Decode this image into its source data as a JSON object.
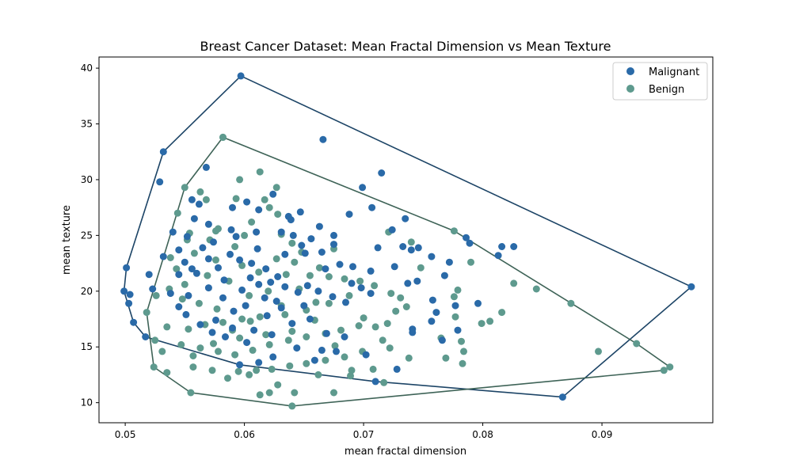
{
  "chart_data": {
    "type": "scatter",
    "title": "Breast Cancer Dataset: Mean Fractal Dimension vs Mean Texture",
    "xlabel": "mean fractal dimension",
    "ylabel": "mean texture",
    "xlim": [
      0.0478,
      0.0993
    ],
    "ylim": [
      8.2,
      41.0
    ],
    "xticks": [
      0.05,
      0.06,
      0.07,
      0.08,
      0.09
    ],
    "xtick_labels": [
      "0.05",
      "0.06",
      "0.07",
      "0.08",
      "0.09"
    ],
    "yticks": [
      10,
      15,
      20,
      25,
      30,
      35,
      40
    ],
    "ytick_labels": [
      "10",
      "15",
      "20",
      "25",
      "30",
      "35",
      "40"
    ],
    "grid": false,
    "legend_position": "top-right",
    "series": [
      {
        "name": "Malignant",
        "color": "#2a6aa8",
        "hull_color": "#1c4466",
        "points": [
          [
            0.0597,
            39.3
          ],
          [
            0.0532,
            32.5
          ],
          [
            0.0529,
            29.8
          ],
          [
            0.0666,
            33.6
          ],
          [
            0.0715,
            30.6
          ],
          [
            0.0568,
            31.1
          ],
          [
            0.0501,
            22.1
          ],
          [
            0.0499,
            20.0
          ],
          [
            0.0503,
            18.9
          ],
          [
            0.0507,
            17.2
          ],
          [
            0.0517,
            15.9
          ],
          [
            0.0504,
            19.7
          ],
          [
            0.0975,
            20.4
          ],
          [
            0.0867,
            10.5
          ],
          [
            0.071,
            11.9
          ],
          [
            0.0728,
            13.0
          ],
          [
            0.054,
            25.3
          ],
          [
            0.0552,
            24.9
          ],
          [
            0.0558,
            26.5
          ],
          [
            0.0562,
            27.8
          ],
          [
            0.0556,
            28.2
          ],
          [
            0.057,
            26.0
          ],
          [
            0.059,
            27.5
          ],
          [
            0.0612,
            27.3
          ],
          [
            0.0624,
            28.7
          ],
          [
            0.0602,
            28.0
          ],
          [
            0.0647,
            27.1
          ],
          [
            0.0699,
            29.3
          ],
          [
            0.0707,
            27.5
          ],
          [
            0.0688,
            26.9
          ],
          [
            0.0735,
            26.5
          ],
          [
            0.0724,
            25.5
          ],
          [
            0.0733,
            24.0
          ],
          [
            0.074,
            23.7
          ],
          [
            0.0746,
            23.9
          ],
          [
            0.0757,
            23.1
          ],
          [
            0.0772,
            22.6
          ],
          [
            0.0786,
            24.8
          ],
          [
            0.0789,
            24.3
          ],
          [
            0.0813,
            23.2
          ],
          [
            0.0816,
            24.0
          ],
          [
            0.0826,
            24.0
          ],
          [
            0.0768,
            21.4
          ],
          [
            0.0758,
            19.2
          ],
          [
            0.0761,
            18.1
          ],
          [
            0.0777,
            18.7
          ],
          [
            0.0779,
            16.5
          ],
          [
            0.0766,
            15.6
          ],
          [
            0.0796,
            18.9
          ],
          [
            0.0757,
            17.3
          ],
          [
            0.0741,
            16.6
          ],
          [
            0.0741,
            16.3
          ],
          [
            0.0737,
            20.7
          ],
          [
            0.0745,
            20.9
          ],
          [
            0.0726,
            22.2
          ],
          [
            0.0712,
            23.9
          ],
          [
            0.0675,
            25.0
          ],
          [
            0.0663,
            25.8
          ],
          [
            0.0665,
            23.5
          ],
          [
            0.0656,
            24.7
          ],
          [
            0.0641,
            25.0
          ],
          [
            0.0648,
            24.1
          ],
          [
            0.0631,
            25.3
          ],
          [
            0.061,
            25.3
          ],
          [
            0.0589,
            25.5
          ],
          [
            0.0593,
            24.9
          ],
          [
            0.0574,
            24.4
          ],
          [
            0.0565,
            23.9
          ],
          [
            0.0545,
            23.7
          ],
          [
            0.0532,
            23.1
          ],
          [
            0.055,
            22.6
          ],
          [
            0.0556,
            22.0
          ],
          [
            0.0545,
            21.5
          ],
          [
            0.052,
            21.5
          ],
          [
            0.0523,
            20.2
          ],
          [
            0.0538,
            19.8
          ],
          [
            0.0553,
            19.6
          ],
          [
            0.057,
            20.3
          ],
          [
            0.0582,
            19.4
          ],
          [
            0.0598,
            20.1
          ],
          [
            0.0612,
            20.6
          ],
          [
            0.0622,
            20.8
          ],
          [
            0.0628,
            21.3
          ],
          [
            0.0634,
            20.4
          ],
          [
            0.0645,
            19.9
          ],
          [
            0.0653,
            20.5
          ],
          [
            0.0662,
            20.0
          ],
          [
            0.0674,
            19.5
          ],
          [
            0.0685,
            19.0
          ],
          [
            0.069,
            20.7
          ],
          [
            0.0698,
            20.3
          ],
          [
            0.0706,
            19.8
          ],
          [
            0.0618,
            22.0
          ],
          [
            0.0606,
            22.5
          ],
          [
            0.0596,
            22.8
          ],
          [
            0.0588,
            23.3
          ],
          [
            0.0578,
            22.1
          ],
          [
            0.0634,
            23.3
          ],
          [
            0.0651,
            23.4
          ],
          [
            0.0668,
            22.0
          ],
          [
            0.068,
            22.4
          ],
          [
            0.0601,
            18.7
          ],
          [
            0.0591,
            18.2
          ],
          [
            0.0576,
            17.4
          ],
          [
            0.0563,
            17.0
          ],
          [
            0.0551,
            17.9
          ],
          [
            0.0545,
            18.6
          ],
          [
            0.0619,
            17.8
          ],
          [
            0.0631,
            18.5
          ],
          [
            0.064,
            17.1
          ],
          [
            0.0655,
            17.5
          ],
          [
            0.0669,
            16.2
          ],
          [
            0.0684,
            15.9
          ],
          [
            0.0702,
            14.3
          ],
          [
            0.0665,
            14.7
          ],
          [
            0.0644,
            14.9
          ],
          [
            0.0602,
            15.4
          ],
          [
            0.0584,
            15.9
          ],
          [
            0.059,
            16.7
          ],
          [
            0.0573,
            16.3
          ],
          [
            0.0608,
            16.5
          ],
          [
            0.0623,
            16.1
          ],
          [
            0.0596,
            13.4
          ],
          [
            0.0612,
            13.6
          ],
          [
            0.0624,
            14.1
          ],
          [
            0.0659,
            13.8
          ],
          [
            0.0677,
            14.6
          ],
          [
            0.0617,
            19.4
          ],
          [
            0.0627,
            19.1
          ],
          [
            0.065,
            18.7
          ],
          [
            0.0605,
            21.2
          ],
          [
            0.0583,
            21.0
          ],
          [
            0.057,
            22.9
          ],
          [
            0.056,
            21.6
          ],
          [
            0.0637,
            26.7
          ],
          [
            0.0639,
            26.4
          ],
          [
            0.0611,
            23.8
          ],
          [
            0.0675,
            24.2
          ],
          [
            0.0691,
            22.2
          ],
          [
            0.0706,
            21.8
          ]
        ]
      },
      {
        "name": "Benign",
        "color": "#5e9a8e",
        "hull_color": "#3e6357",
        "points": [
          [
            0.0582,
            33.8
          ],
          [
            0.0613,
            30.7
          ],
          [
            0.0596,
            30.0
          ],
          [
            0.055,
            29.3
          ],
          [
            0.0563,
            28.9
          ],
          [
            0.0568,
            28.2
          ],
          [
            0.0593,
            28.3
          ],
          [
            0.0617,
            28.2
          ],
          [
            0.0627,
            29.3
          ],
          [
            0.0621,
            27.5
          ],
          [
            0.0544,
            27.0
          ],
          [
            0.0552,
            24.6
          ],
          [
            0.0576,
            25.4
          ],
          [
            0.06,
            25.0
          ],
          [
            0.0631,
            25.1
          ],
          [
            0.0582,
            33.8
          ],
          [
            0.0578,
            25.6
          ],
          [
            0.064,
            24.3
          ],
          [
            0.0648,
            23.5
          ],
          [
            0.0675,
            23.8
          ],
          [
            0.0721,
            25.3
          ],
          [
            0.074,
            24.4
          ],
          [
            0.0776,
            25.4
          ],
          [
            0.0748,
            22.1
          ],
          [
            0.079,
            22.6
          ],
          [
            0.0845,
            20.2
          ],
          [
            0.0826,
            20.7
          ],
          [
            0.0874,
            18.9
          ],
          [
            0.0929,
            15.3
          ],
          [
            0.0957,
            13.2
          ],
          [
            0.0952,
            12.9
          ],
          [
            0.0897,
            14.6
          ],
          [
            0.0816,
            18.1
          ],
          [
            0.0806,
            17.3
          ],
          [
            0.0799,
            17.1
          ],
          [
            0.0782,
            15.5
          ],
          [
            0.0784,
            14.6
          ],
          [
            0.0783,
            13.5
          ],
          [
            0.0769,
            14.0
          ],
          [
            0.0777,
            17.7
          ],
          [
            0.0779,
            20.1
          ],
          [
            0.0776,
            19.5
          ],
          [
            0.0765,
            15.8
          ],
          [
            0.0736,
            18.6
          ],
          [
            0.0738,
            14.0
          ],
          [
            0.0727,
            18.2
          ],
          [
            0.0722,
            14.9
          ],
          [
            0.072,
            17.1
          ],
          [
            0.0717,
            11.8
          ],
          [
            0.0708,
            13.0
          ],
          [
            0.069,
            12.9
          ],
          [
            0.0689,
            12.4
          ],
          [
            0.0675,
            10.9
          ],
          [
            0.0662,
            12.5
          ],
          [
            0.064,
            9.7
          ],
          [
            0.0642,
            10.9
          ],
          [
            0.0628,
            11.6
          ],
          [
            0.0621,
            10.9
          ],
          [
            0.0613,
            10.7
          ],
          [
            0.0604,
            12.5
          ],
          [
            0.0595,
            12.8
          ],
          [
            0.0586,
            12.2
          ],
          [
            0.0573,
            12.9
          ],
          [
            0.0557,
            13.2
          ],
          [
            0.0555,
            10.9
          ],
          [
            0.0535,
            12.7
          ],
          [
            0.0524,
            13.2
          ],
          [
            0.0525,
            15.6
          ],
          [
            0.0531,
            14.6
          ],
          [
            0.0535,
            16.8
          ],
          [
            0.0518,
            18.1
          ],
          [
            0.0526,
            19.6
          ],
          [
            0.0537,
            20.2
          ],
          [
            0.055,
            20.6
          ],
          [
            0.0543,
            22.0
          ],
          [
            0.0538,
            23.0
          ],
          [
            0.0558,
            23.4
          ],
          [
            0.0576,
            22.8
          ],
          [
            0.0598,
            22.3
          ],
          [
            0.0612,
            21.7
          ],
          [
            0.0635,
            21.5
          ],
          [
            0.0655,
            21.4
          ],
          [
            0.0671,
            21.3
          ],
          [
            0.0684,
            21.1
          ],
          [
            0.0697,
            20.9
          ],
          [
            0.0709,
            20.5
          ],
          [
            0.0723,
            19.8
          ],
          [
            0.0731,
            19.4
          ],
          [
            0.0688,
            19.6
          ],
          [
            0.0671,
            18.9
          ],
          [
            0.0652,
            18.3
          ],
          [
            0.0634,
            17.9
          ],
          [
            0.0613,
            17.7
          ],
          [
            0.0598,
            17.5
          ],
          [
            0.0582,
            17.2
          ],
          [
            0.0567,
            17.0
          ],
          [
            0.0553,
            16.6
          ],
          [
            0.0547,
            15.2
          ],
          [
            0.0563,
            14.9
          ],
          [
            0.0578,
            14.6
          ],
          [
            0.0592,
            14.3
          ],
          [
            0.0607,
            14.7
          ],
          [
            0.0621,
            15.2
          ],
          [
            0.0637,
            15.6
          ],
          [
            0.0652,
            15.9
          ],
          [
            0.0668,
            16.2
          ],
          [
            0.0681,
            16.5
          ],
          [
            0.0696,
            16.9
          ],
          [
            0.071,
            16.8
          ],
          [
            0.0699,
            14.6
          ],
          [
            0.0684,
            14.1
          ],
          [
            0.0668,
            13.8
          ],
          [
            0.0652,
            13.5
          ],
          [
            0.0638,
            13.3
          ],
          [
            0.0623,
            13.0
          ],
          [
            0.061,
            12.9
          ],
          [
            0.0577,
            18.4
          ],
          [
            0.0562,
            18.9
          ],
          [
            0.0548,
            19.3
          ],
          [
            0.0604,
            19.6
          ],
          [
            0.062,
            20.0
          ],
          [
            0.0646,
            20.2
          ],
          [
            0.066,
            19.0
          ],
          [
            0.064,
            16.4
          ],
          [
            0.0618,
            16.1
          ],
          [
            0.0596,
            15.8
          ],
          [
            0.0574,
            15.3
          ],
          [
            0.0557,
            14.2
          ],
          [
            0.0587,
            20.9
          ],
          [
            0.0569,
            21.4
          ],
          [
            0.0627,
            22.9
          ],
          [
            0.0642,
            22.6
          ],
          [
            0.0663,
            22.1
          ],
          [
            0.0592,
            24.0
          ],
          [
            0.0571,
            24.6
          ],
          [
            0.0554,
            25.2
          ],
          [
            0.0606,
            26.2
          ],
          [
            0.0628,
            26.9
          ],
          [
            0.07,
            17.6
          ],
          [
            0.0716,
            15.6
          ],
          [
            0.059,
            16.5
          ],
          [
            0.0605,
            17.3
          ],
          [
            0.0631,
            18.7
          ],
          [
            0.0659,
            17.4
          ],
          [
            0.0676,
            15.1
          ]
        ]
      }
    ]
  }
}
